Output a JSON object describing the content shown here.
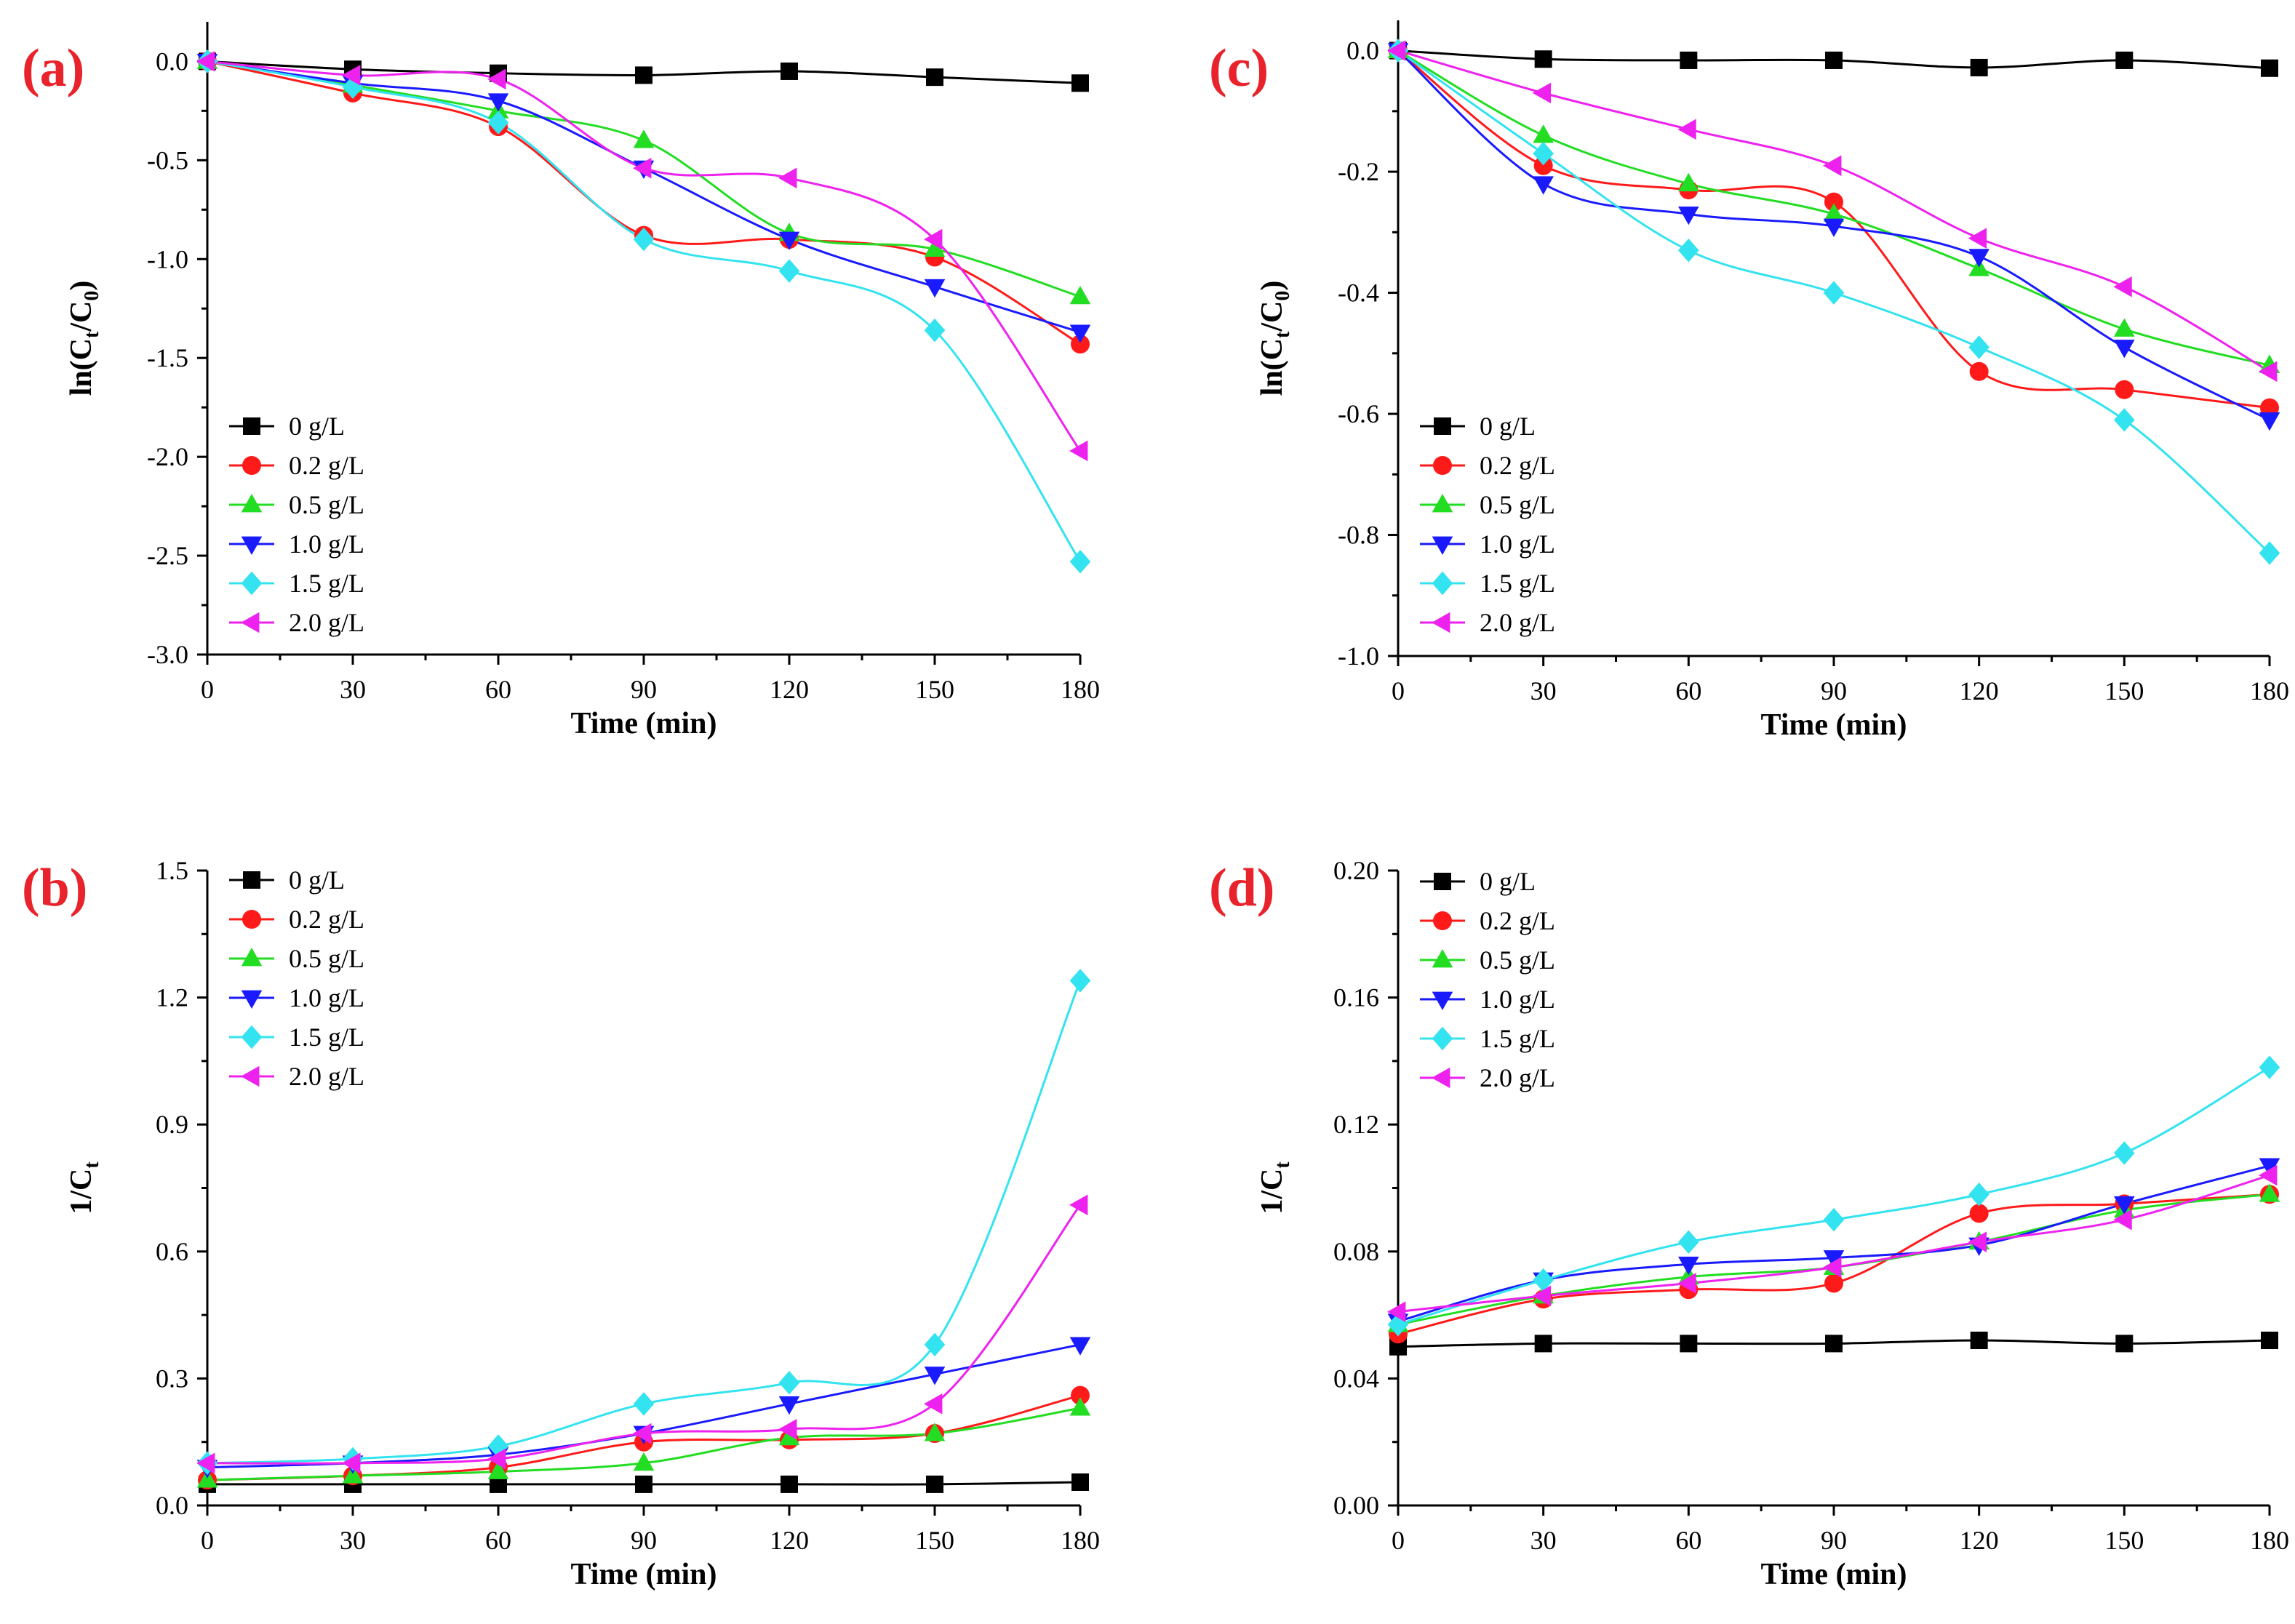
{
  "series_colors": {
    "0 g/L": "#000000",
    "0.2 g/L": "#ff1a1a",
    "0.5 g/L": "#22dd22",
    "1.0 g/L": "#1a1aff",
    "1.5 g/L": "#33e3f0",
    "2.0 g/L": "#ee22ee"
  },
  "chart_data": [
    {
      "panel": "(a)",
      "type": "line",
      "xlabel": "Time (min)",
      "ylabel_main": "ln(C",
      "ylabel_sub1": "t",
      "ylabel_mid": "/C",
      "ylabel_sub2": "0",
      "ylabel_end": ")",
      "xlim": [
        0,
        180
      ],
      "ylim": [
        -3.0,
        0.2
      ],
      "xticks": [
        0,
        30,
        60,
        90,
        120,
        150,
        180
      ],
      "xtick_labels": [
        "0",
        "30",
        "60",
        "90",
        "120",
        "150",
        "180"
      ],
      "yticks": [
        -3.0,
        -2.5,
        -2.0,
        -1.5,
        -1.0,
        -0.5,
        0.0
      ],
      "ytick_labels": [
        "-3.0",
        "-2.5",
        "-2.0",
        "-1.5",
        "-1.0",
        "-0.5",
        "0.0"
      ],
      "legend_position": "bottom-left",
      "x": [
        0,
        30,
        60,
        90,
        120,
        150,
        180
      ],
      "series": [
        {
          "name": "0 g/L",
          "marker": "square",
          "values": [
            0,
            -0.04,
            -0.06,
            -0.07,
            -0.05,
            -0.08,
            -0.11
          ]
        },
        {
          "name": "0.2 g/L",
          "marker": "circle",
          "values": [
            0,
            -0.16,
            -0.33,
            -0.88,
            -0.9,
            -0.99,
            -1.43
          ]
        },
        {
          "name": "0.5 g/L",
          "marker": "triangle-up",
          "values": [
            0,
            -0.12,
            -0.25,
            -0.4,
            -0.87,
            -0.95,
            -1.19
          ]
        },
        {
          "name": "1.0 g/L",
          "marker": "triangle-down",
          "values": [
            0,
            -0.11,
            -0.2,
            -0.54,
            -0.9,
            -1.14,
            -1.37
          ]
        },
        {
          "name": "1.5 g/L",
          "marker": "diamond",
          "values": [
            0,
            -0.13,
            -0.31,
            -0.9,
            -1.06,
            -1.36,
            -2.53
          ]
        },
        {
          "name": "2.0 g/L",
          "marker": "triangle-left",
          "values": [
            0,
            -0.07,
            -0.09,
            -0.54,
            -0.59,
            -0.9,
            -1.97
          ]
        }
      ]
    },
    {
      "panel": "(b)",
      "type": "line",
      "xlabel": "Time (min)",
      "ylabel_main": "1/C",
      "ylabel_sub1": "t",
      "ylabel_mid": "",
      "ylabel_sub2": "",
      "ylabel_end": "",
      "xlim": [
        0,
        180
      ],
      "ylim": [
        0,
        1.5
      ],
      "xticks": [
        0,
        30,
        60,
        90,
        120,
        150,
        180
      ],
      "xtick_labels": [
        "0",
        "30",
        "60",
        "90",
        "120",
        "150",
        "180"
      ],
      "yticks": [
        0.0,
        0.3,
        0.6,
        0.9,
        1.2,
        1.5
      ],
      "ytick_labels": [
        "0.0",
        "0.3",
        "0.6",
        "0.9",
        "1.2",
        "1.5"
      ],
      "legend_position": "top-left",
      "x": [
        0,
        30,
        60,
        90,
        120,
        150,
        180
      ],
      "series": [
        {
          "name": "0 g/L",
          "marker": "square",
          "values": [
            0.05,
            0.05,
            0.05,
            0.05,
            0.05,
            0.05,
            0.055
          ]
        },
        {
          "name": "0.2 g/L",
          "marker": "circle",
          "values": [
            0.06,
            0.07,
            0.09,
            0.15,
            0.155,
            0.17,
            0.26
          ]
        },
        {
          "name": "0.5 g/L",
          "marker": "triangle-up",
          "values": [
            0.06,
            0.07,
            0.08,
            0.1,
            0.16,
            0.17,
            0.23
          ]
        },
        {
          "name": "1.0 g/L",
          "marker": "triangle-down",
          "values": [
            0.09,
            0.1,
            0.12,
            0.17,
            0.24,
            0.31,
            0.38
          ]
        },
        {
          "name": "1.5 g/L",
          "marker": "diamond",
          "values": [
            0.1,
            0.11,
            0.14,
            0.24,
            0.29,
            0.38,
            1.24
          ]
        },
        {
          "name": "2.0 g/L",
          "marker": "triangle-left",
          "values": [
            0.1,
            0.1,
            0.11,
            0.17,
            0.18,
            0.24,
            0.71
          ]
        }
      ]
    },
    {
      "panel": "(c)",
      "type": "line",
      "xlabel": "Time (min)",
      "ylabel_main": "ln(C",
      "ylabel_sub1": "t",
      "ylabel_mid": "/C",
      "ylabel_sub2": "0",
      "ylabel_end": ")",
      "xlim": [
        0,
        180
      ],
      "ylim": [
        -1.0,
        0.05
      ],
      "xticks": [
        0,
        30,
        60,
        90,
        120,
        150,
        180
      ],
      "xtick_labels": [
        "0",
        "30",
        "60",
        "90",
        "120",
        "150",
        "180"
      ],
      "yticks": [
        -1.0,
        -0.8,
        -0.6,
        -0.4,
        -0.2,
        0.0
      ],
      "ytick_labels": [
        "-1.0",
        "-0.8",
        "-0.6",
        "-0.4",
        "-0.2",
        "0.0"
      ],
      "legend_position": "bottom-left",
      "x": [
        0,
        30,
        60,
        90,
        120,
        150,
        180
      ],
      "series": [
        {
          "name": "0 g/L",
          "marker": "square",
          "values": [
            0,
            -0.014,
            -0.016,
            -0.016,
            -0.028,
            -0.016,
            -0.029
          ]
        },
        {
          "name": "0.2 g/L",
          "marker": "circle",
          "values": [
            0,
            -0.19,
            -0.23,
            -0.25,
            -0.53,
            -0.56,
            -0.59
          ]
        },
        {
          "name": "0.5 g/L",
          "marker": "triangle-up",
          "values": [
            0,
            -0.14,
            -0.22,
            -0.27,
            -0.36,
            -0.46,
            -0.52
          ]
        },
        {
          "name": "1.0 g/L",
          "marker": "triangle-down",
          "values": [
            0,
            -0.22,
            -0.27,
            -0.29,
            -0.34,
            -0.49,
            -0.61
          ]
        },
        {
          "name": "1.5 g/L",
          "marker": "diamond",
          "values": [
            0,
            -0.17,
            -0.33,
            -0.4,
            -0.49,
            -0.61,
            -0.83
          ]
        },
        {
          "name": "2.0 g/L",
          "marker": "triangle-left",
          "values": [
            0,
            -0.07,
            -0.13,
            -0.19,
            -0.31,
            -0.39,
            -0.53
          ]
        }
      ]
    },
    {
      "panel": "(d)",
      "type": "line",
      "xlabel": "Time (min)",
      "ylabel_main": "1/C",
      "ylabel_sub1": "t",
      "ylabel_mid": "",
      "ylabel_sub2": "",
      "ylabel_end": "",
      "xlim": [
        0,
        180
      ],
      "ylim": [
        0,
        0.2
      ],
      "xticks": [
        0,
        30,
        60,
        90,
        120,
        150,
        180
      ],
      "xtick_labels": [
        "0",
        "30",
        "60",
        "90",
        "120",
        "150",
        "180"
      ],
      "yticks": [
        0.0,
        0.04,
        0.08,
        0.12,
        0.16,
        0.2
      ],
      "ytick_labels": [
        "0.00",
        "0.04",
        "0.08",
        "0.12",
        "0.16",
        "0.20"
      ],
      "legend_position": "top-left",
      "x": [
        0,
        30,
        60,
        90,
        120,
        150,
        180
      ],
      "series": [
        {
          "name": "0 g/L",
          "marker": "square",
          "values": [
            0.05,
            0.051,
            0.051,
            0.051,
            0.052,
            0.051,
            0.052
          ]
        },
        {
          "name": "0.2 g/L",
          "marker": "circle",
          "values": [
            0.054,
            0.065,
            0.068,
            0.07,
            0.092,
            0.095,
            0.098
          ]
        },
        {
          "name": "0.5 g/L",
          "marker": "triangle-up",
          "values": [
            0.057,
            0.066,
            0.072,
            0.075,
            0.083,
            0.093,
            0.098
          ]
        },
        {
          "name": "1.0 g/L",
          "marker": "triangle-down",
          "values": [
            0.058,
            0.071,
            0.076,
            0.078,
            0.082,
            0.095,
            0.107
          ]
        },
        {
          "name": "1.5 g/L",
          "marker": "diamond",
          "values": [
            0.057,
            0.071,
            0.083,
            0.09,
            0.098,
            0.111,
            0.138
          ]
        },
        {
          "name": "2.0 g/L",
          "marker": "triangle-left",
          "values": [
            0.061,
            0.066,
            0.07,
            0.075,
            0.083,
            0.09,
            0.104
          ]
        }
      ]
    }
  ]
}
